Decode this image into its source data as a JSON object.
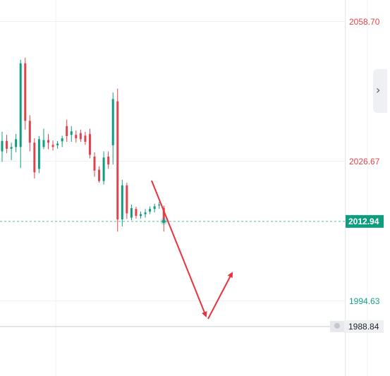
{
  "chart_data": {
    "type": "candlestick",
    "y_axis_labels": [
      {
        "value": 2058.7,
        "text": "2058.70",
        "color": "#e0434b"
      },
      {
        "value": 2026.67,
        "text": "2026.67",
        "color": "#e0434b"
      },
      {
        "value": 1994.63,
        "text": "1994.63",
        "color": "#16a085"
      }
    ],
    "current_price": {
      "value": 2012.94,
      "text": "2012.94",
      "bg": "#0f9d80"
    },
    "crosshair_price": {
      "value": 1988.84,
      "text": "1988.84"
    },
    "ylim": [
      1976.0,
      2072.0
    ],
    "grid": true,
    "colors": {
      "up": "#0f9d80",
      "down": "#e0434b",
      "arrow": "#e8323c"
    },
    "candles": [
      {
        "o": 2029.0,
        "h": 2033.5,
        "l": 2026.6,
        "c": 2031.4
      },
      {
        "o": 2031.4,
        "h": 2032.8,
        "l": 2028.6,
        "c": 2029.6
      },
      {
        "o": 2029.6,
        "h": 2031.0,
        "l": 2027.0,
        "c": 2030.0
      },
      {
        "o": 2030.0,
        "h": 2033.0,
        "l": 2028.8,
        "c": 2031.8
      },
      {
        "o": 2030.0,
        "h": 2050.0,
        "l": 2025.2,
        "c": 2049.2
      },
      {
        "o": 2049.2,
        "h": 2050.5,
        "l": 2034.0,
        "c": 2036.0
      },
      {
        "o": 2036.0,
        "h": 2037.3,
        "l": 2029.0,
        "c": 2031.0
      },
      {
        "o": 2031.0,
        "h": 2032.0,
        "l": 2022.8,
        "c": 2024.2
      },
      {
        "o": 2025.0,
        "h": 2032.5,
        "l": 2024.0,
        "c": 2031.8
      },
      {
        "o": 2030.0,
        "h": 2034.2,
        "l": 2029.5,
        "c": 2031.6
      },
      {
        "o": 2031.6,
        "h": 2033.0,
        "l": 2029.5,
        "c": 2031.0
      },
      {
        "o": 2030.5,
        "h": 2031.5,
        "l": 2029.2,
        "c": 2030.0
      },
      {
        "o": 2030.4,
        "h": 2031.4,
        "l": 2029.6,
        "c": 2030.8
      },
      {
        "o": 2031.3,
        "h": 2032.6,
        "l": 2030.0,
        "c": 2032.0
      },
      {
        "o": 2034.8,
        "h": 2036.3,
        "l": 2031.2,
        "c": 2032.5
      },
      {
        "o": 2032.8,
        "h": 2034.8,
        "l": 2031.2,
        "c": 2033.6
      },
      {
        "o": 2032.8,
        "h": 2033.8,
        "l": 2031.0,
        "c": 2032.0
      },
      {
        "o": 2033.2,
        "h": 2034.0,
        "l": 2031.2,
        "c": 2031.8
      },
      {
        "o": 2032.6,
        "h": 2033.5,
        "l": 2030.5,
        "c": 2031.2
      },
      {
        "o": 2033.0,
        "h": 2034.2,
        "l": 2027.4,
        "c": 2028.2
      },
      {
        "o": 2027.8,
        "h": 2028.8,
        "l": 2023.2,
        "c": 2024.6
      },
      {
        "o": 2024.8,
        "h": 2025.6,
        "l": 2021.8,
        "c": 2022.2
      },
      {
        "o": 2022.2,
        "h": 2029.0,
        "l": 2021.4,
        "c": 2027.6
      },
      {
        "o": 2027.8,
        "h": 2029.0,
        "l": 2025.0,
        "c": 2026.0
      },
      {
        "o": 2030.4,
        "h": 2042.5,
        "l": 2026.0,
        "c": 2041.0
      },
      {
        "o": 2040.5,
        "h": 2043.4,
        "l": 2010.6,
        "c": 2013.4
      },
      {
        "o": 2013.4,
        "h": 2022.5,
        "l": 2011.8,
        "c": 2021.2
      },
      {
        "o": 2021.2,
        "h": 2021.8,
        "l": 2013.5,
        "c": 2014.8
      },
      {
        "o": 2013.8,
        "h": 2016.8,
        "l": 2013.2,
        "c": 2016.0
      },
      {
        "o": 2015.8,
        "h": 2016.3,
        "l": 2013.6,
        "c": 2014.2
      },
      {
        "o": 2014.2,
        "h": 2015.2,
        "l": 2013.6,
        "c": 2014.6
      },
      {
        "o": 2014.6,
        "h": 2015.8,
        "l": 2013.8,
        "c": 2015.0
      },
      {
        "o": 2015.2,
        "h": 2016.4,
        "l": 2014.6,
        "c": 2015.8
      },
      {
        "o": 2015.8,
        "h": 2017.0,
        "l": 2015.0,
        "c": 2016.4
      },
      {
        "o": 2016.6,
        "h": 2017.4,
        "l": 2015.8,
        "c": 2016.8
      },
      {
        "o": 2016.0,
        "h": 2016.6,
        "l": 2010.6,
        "c": 2012.94
      }
    ]
  }
}
